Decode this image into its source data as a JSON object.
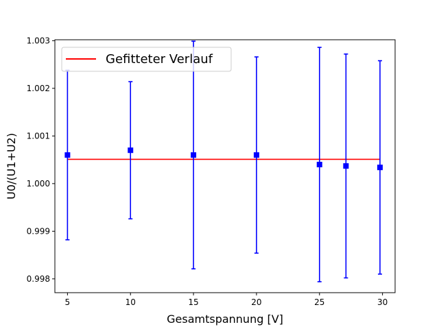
{
  "chart_data": {
    "type": "scatter",
    "title": "",
    "xlabel": "Gesamtspannung [V]",
    "ylabel": "U0/(U1+U2)",
    "xlim": [
      4.0,
      31.0
    ],
    "ylim": [
      0.99771,
      1.00302
    ],
    "xticks": [
      5,
      10,
      15,
      20,
      25,
      30
    ],
    "xtick_labels": [
      "5",
      "10",
      "15",
      "20",
      "25",
      "30"
    ],
    "yticks": [
      0.998,
      0.999,
      1.0,
      1.001,
      1.002,
      1.003
    ],
    "ytick_labels": [
      "0.998",
      "0.999",
      "1.000",
      "1.001",
      "1.002",
      "1.003"
    ],
    "grid": false,
    "legend_position": "top-left",
    "points": {
      "color": "#0000ff",
      "marker": "square",
      "x": [
        5.0,
        10.0,
        15.0,
        20.0,
        25.0,
        27.1,
        29.8
      ],
      "y": [
        1.0006,
        1.0007,
        1.0006,
        1.0006,
        1.0004,
        1.00037,
        1.00034
      ],
      "yerr": [
        0.00178,
        0.00144,
        0.00239,
        0.00206,
        0.00246,
        0.00235,
        0.00224
      ]
    },
    "series": [
      {
        "name": "Gefitteter Verlauf",
        "type": "line",
        "color": "#ff0000",
        "x": [
          5.0,
          29.8
        ],
        "y": [
          1.00051,
          1.00051
        ]
      }
    ]
  }
}
